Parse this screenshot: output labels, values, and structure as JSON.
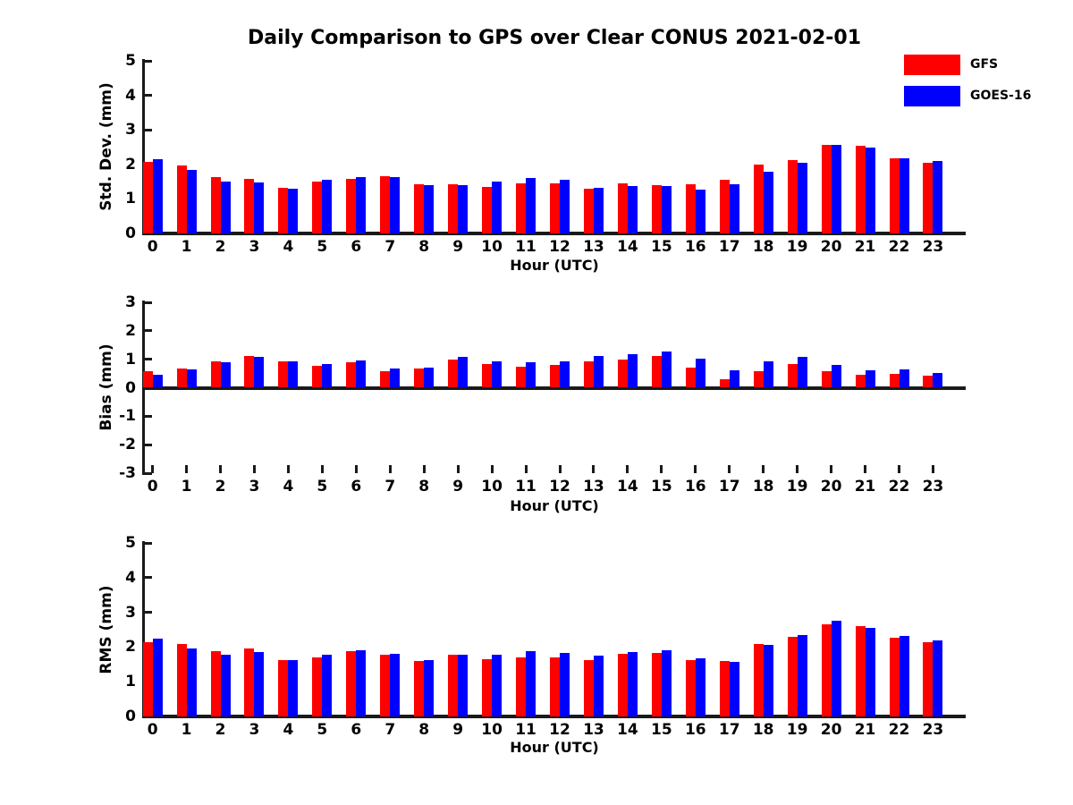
{
  "title": "Daily Comparison to GPS over Clear CONUS 2021-02-01",
  "legend": {
    "items": [
      {
        "label": "GFS",
        "color": "#ff0000"
      },
      {
        "label": "GOES-16",
        "color": "#0000ff"
      }
    ]
  },
  "chart_data": [
    {
      "type": "bar",
      "ylabel": "Std. Dev. (mm)",
      "xlabel": "Hour (UTC)",
      "ylim": [
        0,
        5
      ],
      "yticks": [
        5,
        4,
        3,
        2,
        1,
        0
      ],
      "grid": false,
      "legend_position": "top-right",
      "categories": [
        "0",
        "1",
        "2",
        "3",
        "4",
        "5",
        "6",
        "7",
        "8",
        "9",
        "10",
        "11",
        "12",
        "13",
        "14",
        "15",
        "16",
        "17",
        "18",
        "19",
        "20",
        "21",
        "22",
        "23"
      ],
      "series": [
        {
          "name": "GFS",
          "color": "#ff0000",
          "values": [
            2.06,
            1.96,
            1.64,
            1.59,
            1.31,
            1.51,
            1.58,
            1.67,
            1.42,
            1.43,
            1.36,
            1.46,
            1.45,
            1.3,
            1.46,
            1.39,
            1.42,
            1.55,
            2.0,
            2.13,
            2.56,
            2.53,
            2.18,
            2.05
          ]
        },
        {
          "name": "GOES-16",
          "color": "#0000ff",
          "values": [
            2.15,
            1.85,
            1.51,
            1.47,
            1.3,
            1.55,
            1.62,
            1.63,
            1.4,
            1.39,
            1.49,
            1.61,
            1.56,
            1.32,
            1.38,
            1.37,
            1.28,
            1.43,
            1.79,
            2.05,
            2.57,
            2.48,
            2.18,
            2.1
          ]
        }
      ]
    },
    {
      "type": "bar",
      "ylabel": "Bias (mm)",
      "xlabel": "Hour (UTC)",
      "ylim": [
        -3,
        3
      ],
      "yticks": [
        3,
        2,
        1,
        0,
        -1,
        -2,
        -3
      ],
      "grid": false,
      "categories": [
        "0",
        "1",
        "2",
        "3",
        "4",
        "5",
        "6",
        "7",
        "8",
        "9",
        "10",
        "11",
        "12",
        "13",
        "14",
        "15",
        "16",
        "17",
        "18",
        "19",
        "20",
        "21",
        "22",
        "23"
      ],
      "series": [
        {
          "name": "GFS",
          "color": "#ff0000",
          "values": [
            0.57,
            0.68,
            0.93,
            1.1,
            0.94,
            0.76,
            0.9,
            0.57,
            0.67,
            0.98,
            0.84,
            0.73,
            0.79,
            0.92,
            0.98,
            1.11,
            0.7,
            0.29,
            0.58,
            0.84,
            0.58,
            0.45,
            0.5,
            0.41
          ]
        },
        {
          "name": "GOES-16",
          "color": "#0000ff",
          "values": [
            0.47,
            0.65,
            0.9,
            1.09,
            0.93,
            0.82,
            0.96,
            0.66,
            0.72,
            1.07,
            0.94,
            0.91,
            0.94,
            1.1,
            1.17,
            1.26,
            1.03,
            0.61,
            0.92,
            1.07,
            0.79,
            0.6,
            0.63,
            0.51
          ]
        }
      ]
    },
    {
      "type": "bar",
      "ylabel": "RMS (mm)",
      "xlabel": "Hour (UTC)",
      "ylim": [
        0,
        5
      ],
      "yticks": [
        5,
        4,
        3,
        2,
        1,
        0
      ],
      "grid": false,
      "categories": [
        "0",
        "1",
        "2",
        "3",
        "4",
        "5",
        "6",
        "7",
        "8",
        "9",
        "10",
        "11",
        "12",
        "13",
        "14",
        "15",
        "16",
        "17",
        "18",
        "19",
        "20",
        "21",
        "22",
        "23"
      ],
      "series": [
        {
          "name": "GFS",
          "color": "#ff0000",
          "values": [
            2.13,
            2.1,
            1.89,
            1.96,
            1.62,
            1.7,
            1.89,
            1.78,
            1.59,
            1.78,
            1.65,
            1.69,
            1.71,
            1.62,
            1.81,
            1.83,
            1.62,
            1.61,
            2.09,
            2.29,
            2.66,
            2.6,
            2.28,
            2.14
          ]
        },
        {
          "name": "GOES-16",
          "color": "#0000ff",
          "values": [
            2.23,
            1.96,
            1.77,
            1.86,
            1.62,
            1.78,
            1.92,
            1.81,
            1.63,
            1.78,
            1.78,
            1.89,
            1.83,
            1.75,
            1.85,
            1.92,
            1.68,
            1.58,
            2.06,
            2.34,
            2.76,
            2.56,
            2.31,
            2.2
          ]
        }
      ]
    }
  ]
}
